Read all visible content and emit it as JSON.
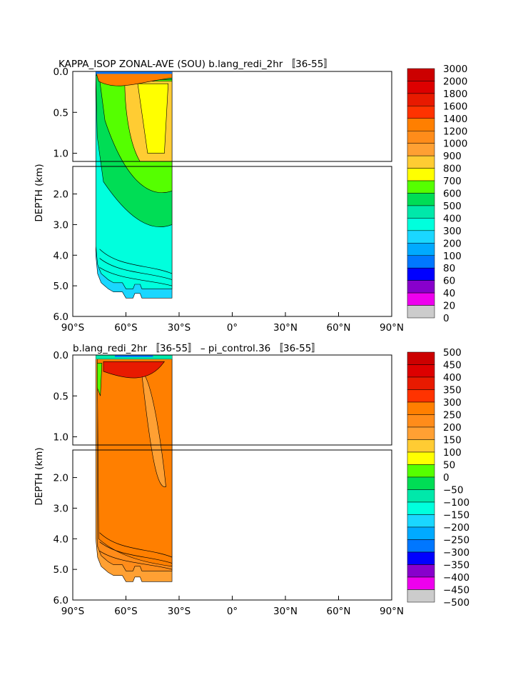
{
  "chart_data": [
    {
      "type": "heatmap",
      "title": "KAPPA_ISOP ZONAL-AVE (SOU) b.lang_redi_2hr 〚36-55〛",
      "ylabel": "DEPTH (km)",
      "xlabel": "",
      "x_ticks": [
        "90°S",
        "60°S",
        "30°S",
        "0°",
        "30°N",
        "60°N",
        "90°N"
      ],
      "x_range": [
        -90,
        90
      ],
      "y_ticks_upper": [
        "0.0",
        "0.5",
        "1.0"
      ],
      "y_ticks_lower": [
        "2.0",
        "3.0",
        "4.0",
        "5.0",
        "6.0"
      ],
      "y_range_km": [
        0,
        6
      ],
      "data_extent_lat": [
        -77,
        -34
      ],
      "colorbar_levels": [
        "3000",
        "2000",
        "1800",
        "1600",
        "1400",
        "1200",
        "1000",
        "900",
        "800",
        "700",
        "600",
        "500",
        "400",
        "300",
        "200",
        "100",
        "80",
        "60",
        "40",
        "20",
        "0"
      ],
      "dominant_values": [
        {
          "region": "surface south",
          "approx": 1400
        },
        {
          "region": "upper ocean 45-60S",
          "approx": 1000
        },
        {
          "region": "upper ocean 60-75S",
          "approx": 700
        },
        {
          "region": "deep ocean",
          "approx": 500
        }
      ]
    },
    {
      "type": "heatmap",
      "title": "b.lang_redi_2hr 〚36-55〛 – pi_control.36 〚36-55〛",
      "ylabel": "DEPTH (km)",
      "xlabel": "",
      "x_ticks": [
        "90°S",
        "60°S",
        "30°S",
        "0°",
        "30°N",
        "60°N",
        "90°N"
      ],
      "x_range": [
        -90,
        90
      ],
      "y_ticks_upper": [
        "0.0",
        "0.5",
        "1.0"
      ],
      "y_ticks_lower": [
        "2.0",
        "3.0",
        "4.0",
        "5.0",
        "6.0"
      ],
      "y_range_km": [
        0,
        6
      ],
      "data_extent_lat": [
        -77,
        -34
      ],
      "colorbar_levels": [
        "500",
        "450",
        "400",
        "350",
        "300",
        "250",
        "200",
        "150",
        "100",
        "50",
        "0",
        "−50",
        "−100",
        "−150",
        "−200",
        "−250",
        "−300",
        "−350",
        "−400",
        "−450",
        "−500"
      ],
      "dominant_values": [
        {
          "region": "surface",
          "approx": -100
        },
        {
          "region": "upper ocean 0.1-0.3 km",
          "approx": 350
        },
        {
          "region": "interior",
          "approx": 275
        },
        {
          "region": "bottom",
          "approx": 175
        }
      ]
    }
  ],
  "palette": [
    "#CC0000",
    "#DD0000",
    "#E81A00",
    "#FF3300",
    "#FF7F00",
    "#FF8C1A",
    "#FFA033",
    "#FFCC33",
    "#FFFF00",
    "#55FF00",
    "#00DD55",
    "#00E8AA",
    "#00FFDD",
    "#1AD7FF",
    "#00AAFF",
    "#0077FF",
    "#0000FF",
    "#8800CC",
    "#EE00EE",
    "#CCCCCC",
    "#777777"
  ]
}
